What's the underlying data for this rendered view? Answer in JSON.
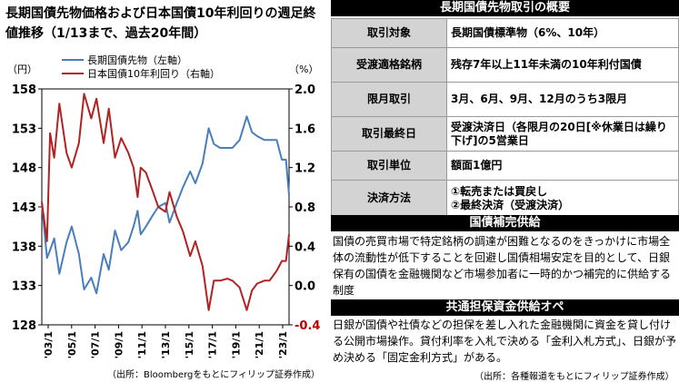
{
  "title": "長期国債先物価格および日本国債10年利回りの週足終値推移（1/13まで、過去20年間）",
  "source_left": "（出所：Bloombergをもとにフィリップ証券作成）",
  "source_right": "（出所：各種報道をもとにフィリップ証券作成）",
  "chart_data": {
    "type": "line",
    "left_axis": {
      "unit": "（円）",
      "ticks": [
        128,
        133,
        138,
        143,
        148,
        153,
        158
      ],
      "ylim": [
        128,
        158
      ]
    },
    "right_axis": {
      "unit": "（%）",
      "ticks": [
        "-0.4",
        "0.0",
        "0.4",
        "0.8",
        "1.2",
        "1.6",
        "2.0"
      ],
      "ylim": [
        -0.4,
        2.0
      ]
    },
    "x_ticks": [
      "'03/1",
      "'05/1",
      "'07/1",
      "'09/1",
      "'11/1",
      "'13/1",
      "'15/1",
      "'17/1",
      "'19/1",
      "'21/1",
      "'23/1"
    ],
    "xlim": [
      "2003-01",
      "2023-01"
    ],
    "series": [
      {
        "name": "長期国債先物（左軸）",
        "axis": "left",
        "color": "#4a7ebb",
        "points": [
          [
            "2003-01",
            143.5
          ],
          [
            "2003-06",
            136.5
          ],
          [
            "2003-09",
            137.5
          ],
          [
            "2004-01",
            139.0
          ],
          [
            "2004-06",
            134.5
          ],
          [
            "2005-01",
            138.5
          ],
          [
            "2005-06",
            140.5
          ],
          [
            "2006-01",
            137.0
          ],
          [
            "2006-06",
            132.5
          ],
          [
            "2007-01",
            134.0
          ],
          [
            "2007-06",
            132.0
          ],
          [
            "2008-01",
            137.0
          ],
          [
            "2008-06",
            135.0
          ],
          [
            "2008-12",
            140.0
          ],
          [
            "2009-06",
            137.5
          ],
          [
            "2010-01",
            138.5
          ],
          [
            "2010-06",
            140.5
          ],
          [
            "2010-10",
            142.5
          ],
          [
            "2011-01",
            139.5
          ],
          [
            "2011-06",
            140.5
          ],
          [
            "2012-01",
            142.0
          ],
          [
            "2012-06",
            143.0
          ],
          [
            "2013-01",
            143.5
          ],
          [
            "2013-05",
            141.0
          ],
          [
            "2013-12",
            143.5
          ],
          [
            "2014-06",
            145.5
          ],
          [
            "2015-01",
            147.5
          ],
          [
            "2015-06",
            146.0
          ],
          [
            "2016-01",
            148.5
          ],
          [
            "2016-07",
            153.0
          ],
          [
            "2016-12",
            151.0
          ],
          [
            "2017-06",
            150.5
          ],
          [
            "2018-01",
            150.5
          ],
          [
            "2018-06",
            150.5
          ],
          [
            "2019-01",
            151.5
          ],
          [
            "2019-08",
            154.5
          ],
          [
            "2020-01",
            152.5
          ],
          [
            "2020-06",
            152.0
          ],
          [
            "2021-01",
            151.5
          ],
          [
            "2021-06",
            151.5
          ],
          [
            "2022-01",
            151.5
          ],
          [
            "2022-06",
            149.0
          ],
          [
            "2022-10",
            149.0
          ],
          [
            "2023-01",
            144.5
          ]
        ]
      },
      {
        "name": "日本国債10年利回り（右軸）",
        "axis": "right",
        "color": "#b22222",
        "points": [
          [
            "2003-01",
            0.85
          ],
          [
            "2003-06",
            0.45
          ],
          [
            "2003-09",
            1.55
          ],
          [
            "2004-01",
            1.3
          ],
          [
            "2004-06",
            1.85
          ],
          [
            "2005-01",
            1.35
          ],
          [
            "2005-06",
            1.2
          ],
          [
            "2006-01",
            1.45
          ],
          [
            "2006-06",
            1.95
          ],
          [
            "2007-01",
            1.7
          ],
          [
            "2007-06",
            1.9
          ],
          [
            "2008-01",
            1.45
          ],
          [
            "2008-06",
            1.8
          ],
          [
            "2008-12",
            1.3
          ],
          [
            "2009-06",
            1.5
          ],
          [
            "2010-01",
            1.35
          ],
          [
            "2010-06",
            1.2
          ],
          [
            "2010-10",
            0.9
          ],
          [
            "2011-01",
            1.2
          ],
          [
            "2011-06",
            1.15
          ],
          [
            "2012-01",
            0.95
          ],
          [
            "2012-06",
            0.8
          ],
          [
            "2013-01",
            0.75
          ],
          [
            "2013-05",
            0.95
          ],
          [
            "2013-12",
            0.7
          ],
          [
            "2014-06",
            0.55
          ],
          [
            "2015-01",
            0.3
          ],
          [
            "2015-06",
            0.45
          ],
          [
            "2016-01",
            0.2
          ],
          [
            "2016-07",
            -0.25
          ],
          [
            "2016-12",
            0.05
          ],
          [
            "2017-06",
            0.05
          ],
          [
            "2018-01",
            0.07
          ],
          [
            "2018-06",
            0.05
          ],
          [
            "2019-01",
            -0.02
          ],
          [
            "2019-08",
            -0.25
          ],
          [
            "2020-01",
            -0.05
          ],
          [
            "2020-06",
            0.02
          ],
          [
            "2021-01",
            0.05
          ],
          [
            "2021-06",
            0.05
          ],
          [
            "2022-01",
            0.15
          ],
          [
            "2022-06",
            0.25
          ],
          [
            "2022-10",
            0.25
          ],
          [
            "2023-01",
            0.52
          ]
        ]
      }
    ]
  },
  "overview": {
    "heading": "長期国債先物取引の概要",
    "rows": [
      {
        "label": "取引対象",
        "value": "長期国債標準物（6%、10年）"
      },
      {
        "label": "受渡適格銘柄",
        "value": "残存7年以上11年未満の10年利付国債"
      },
      {
        "label": "限月取引",
        "value": "3月、6月、9月、12月のうち3限月"
      },
      {
        "label": "取引最終日",
        "value": "受渡決済日（各限月の20日[※休業日は繰り下げ]の5営業日"
      },
      {
        "label": "取引単位",
        "value": "額面1億円"
      },
      {
        "label": "決済方法",
        "value": "①転売または買戻し\n②最終決済（受渡決済）"
      }
    ]
  },
  "supply": {
    "heading": "国債補完供給",
    "text": "国債の売買市場で特定銘柄の調達が困難となるのをきっかけに市場全体の流動性が低下することを回避し国債相場安定を目的として、日銀保有の国債を金融機関など市場参加者に一時的かつ補完的に供給する制度"
  },
  "repo": {
    "heading": "共通担保資金供給オペ",
    "text": "日銀が国債や社債などの担保を差し入れた金融機関に資金を貸し付ける公開市場操作。貸付利率を入札で決める「金利入札方式」、日銀が予め決める「固定金利方式」がある。"
  }
}
